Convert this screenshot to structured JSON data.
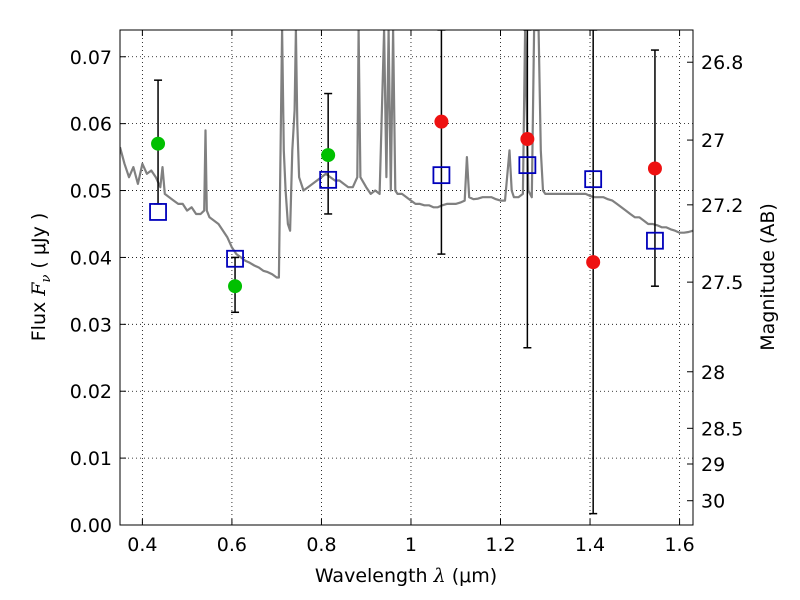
{
  "chart_data": {
    "type": "scatter",
    "xlabel": {
      "prefix": "Wavelength",
      "symbol": "λ",
      "unit": "(μm)"
    },
    "ylabel": {
      "prefix": "Flux",
      "symbol": "F",
      "subscript": "ν",
      "unit": "( μJy )"
    },
    "y2label": "Magnitude (AB)",
    "xlim": [
      0.35,
      1.63
    ],
    "ylim": [
      0.0,
      0.074
    ],
    "grid": true,
    "x_ticks": [
      {
        "value": 0.4,
        "label": "0.4"
      },
      {
        "value": 0.6,
        "label": "0.6"
      },
      {
        "value": 0.8,
        "label": "0.8"
      },
      {
        "value": 1.0,
        "label": "1"
      },
      {
        "value": 1.2,
        "label": "1.2"
      },
      {
        "value": 1.4,
        "label": "1.4"
      },
      {
        "value": 1.6,
        "label": "1.6"
      }
    ],
    "y_ticks": [
      {
        "value": 0.0,
        "label": "0.00"
      },
      {
        "value": 0.01,
        "label": "0.01"
      },
      {
        "value": 0.02,
        "label": "0.02"
      },
      {
        "value": 0.03,
        "label": "0.03"
      },
      {
        "value": 0.04,
        "label": "0.04"
      },
      {
        "value": 0.05,
        "label": "0.05"
      },
      {
        "value": 0.06,
        "label": "0.06"
      },
      {
        "value": 0.07,
        "label": "0.07"
      }
    ],
    "y2_ticks": [
      {
        "value": 26.8,
        "label": "26.8"
      },
      {
        "value": 27.0,
        "label": "27"
      },
      {
        "value": 27.2,
        "label": "27.2"
      },
      {
        "value": 27.5,
        "label": "27.5"
      },
      {
        "value": 28.0,
        "label": "28"
      },
      {
        "value": 28.5,
        "label": "28.5"
      },
      {
        "value": 29.0,
        "label": "29"
      },
      {
        "value": 30.0,
        "label": "30"
      }
    ],
    "series": [
      {
        "kind": "errorbar",
        "color": "#000000",
        "points": [
          {
            "x": 0.435,
            "y": 0.0515,
            "ylo": 0.048,
            "yhi": 0.0665
          },
          {
            "x": 0.607,
            "y": 0.0355,
            "ylo": 0.0318,
            "yhi": 0.04
          },
          {
            "x": 0.815,
            "y": 0.0555,
            "ylo": 0.0465,
            "yhi": 0.0645
          },
          {
            "x": 1.068,
            "y": 0.053,
            "ylo": 0.0405,
            "yhi": 0.074
          },
          {
            "x": 1.26,
            "y": 0.05,
            "ylo": 0.0265,
            "yhi": 0.074
          },
          {
            "x": 1.407,
            "y": 0.038,
            "ylo": 0.0017,
            "yhi": 0.074
          },
          {
            "x": 1.545,
            "y": 0.053,
            "ylo": 0.0357,
            "yhi": 0.071
          }
        ]
      },
      {
        "kind": "marker",
        "marker": "circle",
        "color": "#00c000",
        "points": [
          {
            "x": 0.435,
            "y": 0.057
          },
          {
            "x": 0.607,
            "y": 0.0357
          },
          {
            "x": 0.815,
            "y": 0.0553
          }
        ]
      },
      {
        "kind": "marker",
        "marker": "circle",
        "color": "#ee1111",
        "points": [
          {
            "x": 1.068,
            "y": 0.0603
          },
          {
            "x": 1.26,
            "y": 0.0577
          },
          {
            "x": 1.407,
            "y": 0.0393
          },
          {
            "x": 1.545,
            "y": 0.0533
          }
        ]
      },
      {
        "kind": "marker",
        "marker": "open-square",
        "color": "#0000bb",
        "points": [
          {
            "x": 0.435,
            "y": 0.0468
          },
          {
            "x": 0.607,
            "y": 0.0398
          },
          {
            "x": 0.815,
            "y": 0.0516
          },
          {
            "x": 1.068,
            "y": 0.0523
          },
          {
            "x": 1.26,
            "y": 0.0538
          },
          {
            "x": 1.407,
            "y": 0.0517
          },
          {
            "x": 1.545,
            "y": 0.0425
          }
        ]
      },
      {
        "kind": "line",
        "color": "#808080",
        "points": [
          [
            0.35,
            0.0565
          ],
          [
            0.36,
            0.054
          ],
          [
            0.37,
            0.052
          ],
          [
            0.38,
            0.0535
          ],
          [
            0.39,
            0.051
          ],
          [
            0.4,
            0.054
          ],
          [
            0.41,
            0.0525
          ],
          [
            0.42,
            0.053
          ],
          [
            0.43,
            0.052
          ],
          [
            0.44,
            0.0505
          ],
          [
            0.445,
            0.0535
          ],
          [
            0.45,
            0.0495
          ],
          [
            0.46,
            0.049
          ],
          [
            0.47,
            0.0485
          ],
          [
            0.48,
            0.048
          ],
          [
            0.49,
            0.048
          ],
          [
            0.5,
            0.047
          ],
          [
            0.51,
            0.0475
          ],
          [
            0.52,
            0.0465
          ],
          [
            0.53,
            0.0465
          ],
          [
            0.538,
            0.047
          ],
          [
            0.541,
            0.059
          ],
          [
            0.544,
            0.047
          ],
          [
            0.55,
            0.046
          ],
          [
            0.56,
            0.0455
          ],
          [
            0.57,
            0.045
          ],
          [
            0.58,
            0.044
          ],
          [
            0.59,
            0.043
          ],
          [
            0.6,
            0.0415
          ],
          [
            0.61,
            0.0405
          ],
          [
            0.62,
            0.04
          ],
          [
            0.63,
            0.0395
          ],
          [
            0.64,
            0.0392
          ],
          [
            0.65,
            0.0388
          ],
          [
            0.66,
            0.0385
          ],
          [
            0.67,
            0.038
          ],
          [
            0.68,
            0.0378
          ],
          [
            0.69,
            0.0375
          ],
          [
            0.7,
            0.037
          ],
          [
            0.705,
            0.037
          ],
          [
            0.712,
            0.074
          ],
          [
            0.716,
            0.056
          ],
          [
            0.72,
            0.05
          ],
          [
            0.725,
            0.045
          ],
          [
            0.73,
            0.044
          ],
          [
            0.735,
            0.056
          ],
          [
            0.74,
            0.062
          ],
          [
            0.743,
            0.074
          ],
          [
            0.746,
            0.06
          ],
          [
            0.75,
            0.052
          ],
          [
            0.76,
            0.05
          ],
          [
            0.77,
            0.0505
          ],
          [
            0.78,
            0.051
          ],
          [
            0.79,
            0.0515
          ],
          [
            0.8,
            0.052
          ],
          [
            0.81,
            0.0525
          ],
          [
            0.82,
            0.052
          ],
          [
            0.83,
            0.0515
          ],
          [
            0.84,
            0.0515
          ],
          [
            0.85,
            0.051
          ],
          [
            0.86,
            0.0505
          ],
          [
            0.87,
            0.0505
          ],
          [
            0.88,
            0.052
          ],
          [
            0.883,
            0.074
          ],
          [
            0.887,
            0.052
          ],
          [
            0.9,
            0.0505
          ],
          [
            0.91,
            0.0495
          ],
          [
            0.92,
            0.05
          ],
          [
            0.93,
            0.0495
          ],
          [
            0.94,
            0.074
          ],
          [
            0.945,
            0.052
          ],
          [
            0.95,
            0.074
          ],
          [
            0.955,
            0.05
          ],
          [
            0.96,
            0.074
          ],
          [
            0.965,
            0.05
          ],
          [
            0.97,
            0.0495
          ],
          [
            0.98,
            0.0495
          ],
          [
            0.99,
            0.049
          ],
          [
            1.0,
            0.0485
          ],
          [
            1.01,
            0.048
          ],
          [
            1.02,
            0.048
          ],
          [
            1.03,
            0.0478
          ],
          [
            1.04,
            0.0478
          ],
          [
            1.05,
            0.0475
          ],
          [
            1.06,
            0.0475
          ],
          [
            1.07,
            0.0478
          ],
          [
            1.08,
            0.048
          ],
          [
            1.09,
            0.048
          ],
          [
            1.1,
            0.048
          ],
          [
            1.11,
            0.0482
          ],
          [
            1.12,
            0.0485
          ],
          [
            1.125,
            0.055
          ],
          [
            1.13,
            0.049
          ],
          [
            1.14,
            0.0487
          ],
          [
            1.15,
            0.0488
          ],
          [
            1.16,
            0.049
          ],
          [
            1.17,
            0.049
          ],
          [
            1.18,
            0.049
          ],
          [
            1.19,
            0.0487
          ],
          [
            1.2,
            0.0485
          ],
          [
            1.21,
            0.0485
          ],
          [
            1.22,
            0.056
          ],
          [
            1.225,
            0.05
          ],
          [
            1.23,
            0.049
          ],
          [
            1.24,
            0.049
          ],
          [
            1.25,
            0.0495
          ],
          [
            1.255,
            0.074
          ],
          [
            1.262,
            0.05
          ],
          [
            1.27,
            0.049
          ],
          [
            1.275,
            0.074
          ],
          [
            1.28,
            0.074
          ],
          [
            1.285,
            0.074
          ],
          [
            1.29,
            0.056
          ],
          [
            1.295,
            0.05
          ],
          [
            1.3,
            0.0495
          ],
          [
            1.31,
            0.0495
          ],
          [
            1.32,
            0.0495
          ],
          [
            1.33,
            0.0495
          ],
          [
            1.34,
            0.0495
          ],
          [
            1.35,
            0.0495
          ],
          [
            1.36,
            0.0495
          ],
          [
            1.37,
            0.0495
          ],
          [
            1.38,
            0.0495
          ],
          [
            1.39,
            0.0495
          ],
          [
            1.4,
            0.0492
          ],
          [
            1.41,
            0.049
          ],
          [
            1.42,
            0.049
          ],
          [
            1.43,
            0.049
          ],
          [
            1.44,
            0.0487
          ],
          [
            1.45,
            0.0485
          ],
          [
            1.46,
            0.048
          ],
          [
            1.47,
            0.0475
          ],
          [
            1.48,
            0.047
          ],
          [
            1.49,
            0.0465
          ],
          [
            1.5,
            0.046
          ],
          [
            1.51,
            0.046
          ],
          [
            1.52,
            0.0455
          ],
          [
            1.53,
            0.045
          ],
          [
            1.54,
            0.045
          ],
          [
            1.55,
            0.0448
          ],
          [
            1.56,
            0.0445
          ],
          [
            1.57,
            0.0445
          ],
          [
            1.58,
            0.0442
          ],
          [
            1.59,
            0.044
          ],
          [
            1.6,
            0.0437
          ],
          [
            1.61,
            0.0437
          ],
          [
            1.62,
            0.0438
          ],
          [
            1.63,
            0.044
          ]
        ]
      }
    ]
  }
}
